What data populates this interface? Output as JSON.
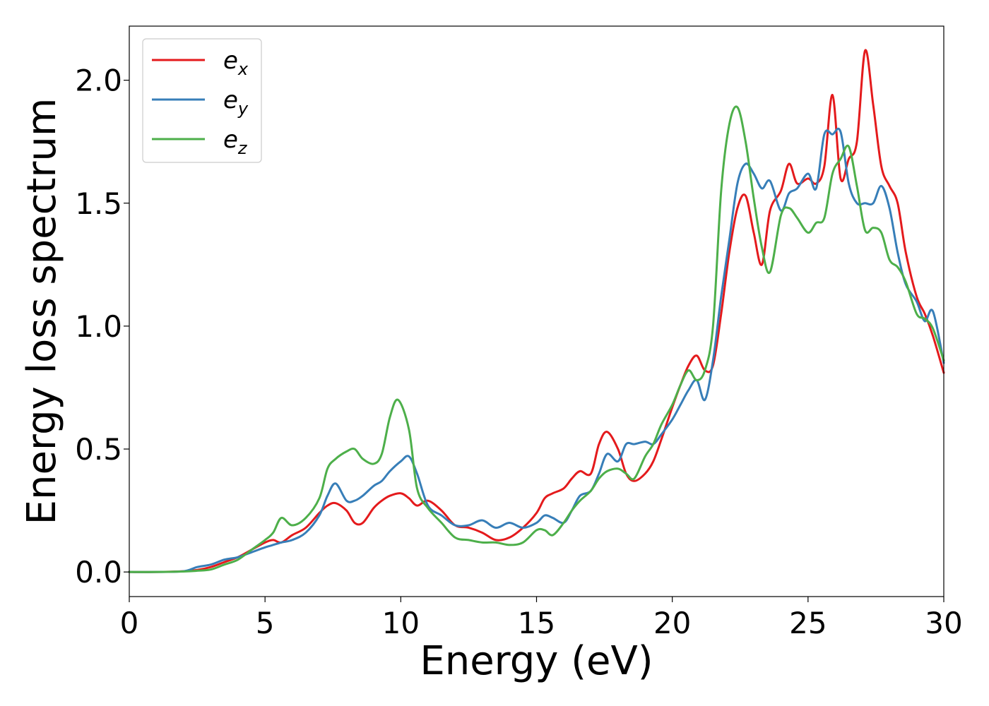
{
  "chart_data": {
    "type": "line",
    "xlabel": "Energy (eV)",
    "ylabel": "Energy loss spectrum",
    "xlim": [
      0,
      30
    ],
    "ylim": [
      -0.1,
      2.22
    ],
    "xticks": [
      0,
      5,
      10,
      15,
      20,
      25,
      30
    ],
    "yticks": [
      0.0,
      0.5,
      1.0,
      1.5,
      2.0
    ],
    "xtick_labels": [
      "0",
      "5",
      "10",
      "15",
      "20",
      "25",
      "30"
    ],
    "ytick_labels": [
      "0.0",
      "0.5",
      "1.0",
      "1.5",
      "2.0"
    ],
    "grid": false,
    "legend_position": "top-left",
    "series": [
      {
        "name": "e_x",
        "name_base": "e",
        "name_sub": "x",
        "color": "#e41a1c",
        "x": [
          0,
          1,
          2,
          2.5,
          3,
          3.5,
          4,
          4.5,
          5,
          5.3,
          5.6,
          6,
          6.5,
          7,
          7.3,
          7.6,
          8,
          8.3,
          8.6,
          9,
          9.3,
          9.6,
          10,
          10.3,
          10.6,
          11,
          11.5,
          12,
          12.5,
          13,
          13.5,
          14,
          14.5,
          15,
          15.3,
          15.6,
          16,
          16.3,
          16.6,
          17,
          17.3,
          17.6,
          18,
          18.3,
          18.6,
          19,
          19.3,
          19.6,
          20,
          20.3,
          20.6,
          20.9,
          21.2,
          21.5,
          21.8,
          22.1,
          22.4,
          22.7,
          23,
          23.3,
          23.6,
          24,
          24.3,
          24.6,
          25,
          25.3,
          25.6,
          25.9,
          26.2,
          26.5,
          26.8,
          27.1,
          27.4,
          27.7,
          28,
          28.3,
          28.6,
          29,
          29.3,
          29.6,
          30
        ],
        "y": [
          0,
          0,
          0.003,
          0.008,
          0.02,
          0.04,
          0.06,
          0.09,
          0.12,
          0.13,
          0.12,
          0.15,
          0.18,
          0.24,
          0.27,
          0.28,
          0.25,
          0.2,
          0.2,
          0.26,
          0.29,
          0.31,
          0.32,
          0.3,
          0.27,
          0.29,
          0.25,
          0.19,
          0.18,
          0.16,
          0.13,
          0.14,
          0.18,
          0.24,
          0.3,
          0.32,
          0.34,
          0.38,
          0.41,
          0.4,
          0.52,
          0.57,
          0.5,
          0.4,
          0.37,
          0.4,
          0.45,
          0.54,
          0.67,
          0.76,
          0.84,
          0.88,
          0.82,
          0.84,
          1.05,
          1.3,
          1.48,
          1.53,
          1.38,
          1.25,
          1.47,
          1.55,
          1.66,
          1.58,
          1.6,
          1.58,
          1.65,
          1.94,
          1.6,
          1.68,
          1.75,
          2.12,
          1.9,
          1.65,
          1.57,
          1.5,
          1.3,
          1.12,
          1.05,
          0.96,
          0.81
        ]
      },
      {
        "name": "e_y",
        "name_base": "e",
        "name_sub": "y",
        "color": "#377eb8",
        "x": [
          0,
          1,
          2,
          2.5,
          3,
          3.5,
          4,
          4.5,
          5,
          5.3,
          5.6,
          6,
          6.5,
          7,
          7.3,
          7.6,
          8,
          8.3,
          8.6,
          9,
          9.3,
          9.6,
          10,
          10.3,
          10.6,
          11,
          11.5,
          12,
          12.5,
          13,
          13.5,
          14,
          14.5,
          15,
          15.3,
          15.6,
          16,
          16.3,
          16.6,
          17,
          17.3,
          17.6,
          18,
          18.3,
          18.6,
          19,
          19.3,
          19.6,
          20,
          20.3,
          20.6,
          20.9,
          21.2,
          21.5,
          21.8,
          22.1,
          22.4,
          22.7,
          23,
          23.3,
          23.6,
          24,
          24.3,
          24.6,
          25,
          25.3,
          25.6,
          25.9,
          26.2,
          26.5,
          26.8,
          27.1,
          27.4,
          27.7,
          28,
          28.3,
          28.6,
          29,
          29.3,
          29.6,
          30
        ],
        "y": [
          0,
          0,
          0.003,
          0.02,
          0.03,
          0.05,
          0.06,
          0.08,
          0.1,
          0.11,
          0.12,
          0.13,
          0.16,
          0.23,
          0.31,
          0.36,
          0.29,
          0.29,
          0.31,
          0.35,
          0.37,
          0.41,
          0.45,
          0.47,
          0.4,
          0.27,
          0.23,
          0.19,
          0.19,
          0.21,
          0.18,
          0.2,
          0.18,
          0.2,
          0.23,
          0.22,
          0.2,
          0.25,
          0.31,
          0.33,
          0.4,
          0.48,
          0.45,
          0.52,
          0.52,
          0.53,
          0.52,
          0.56,
          0.62,
          0.68,
          0.74,
          0.78,
          0.7,
          0.86,
          1.12,
          1.35,
          1.58,
          1.66,
          1.62,
          1.56,
          1.59,
          1.47,
          1.54,
          1.56,
          1.62,
          1.56,
          1.78,
          1.78,
          1.79,
          1.58,
          1.5,
          1.5,
          1.5,
          1.57,
          1.48,
          1.3,
          1.17,
          1.1,
          1.02,
          1.06,
          0.85
        ]
      },
      {
        "name": "e_z",
        "name_base": "e",
        "name_sub": "z",
        "color": "#4daf4a",
        "x": [
          0,
          1,
          2,
          2.5,
          3,
          3.5,
          4,
          4.5,
          5,
          5.3,
          5.6,
          6,
          6.5,
          7,
          7.3,
          7.6,
          8,
          8.3,
          8.6,
          9,
          9.3,
          9.6,
          9.9,
          10.3,
          10.6,
          11,
          11.5,
          12,
          12.5,
          13,
          13.5,
          14,
          14.5,
          15,
          15.3,
          15.6,
          16,
          16.3,
          16.6,
          17,
          17.3,
          17.6,
          18,
          18.3,
          18.6,
          19,
          19.3,
          19.6,
          20,
          20.3,
          20.6,
          20.9,
          21.2,
          21.5,
          21.8,
          22.1,
          22.4,
          22.7,
          23,
          23.3,
          23.6,
          24,
          24.3,
          24.6,
          25,
          25.3,
          25.6,
          25.9,
          26.2,
          26.5,
          26.8,
          27.1,
          27.4,
          27.7,
          28,
          28.3,
          28.6,
          29,
          29.3,
          29.6,
          30
        ],
        "y": [
          0,
          0,
          0.002,
          0.005,
          0.01,
          0.03,
          0.05,
          0.09,
          0.13,
          0.16,
          0.22,
          0.19,
          0.22,
          0.3,
          0.42,
          0.46,
          0.49,
          0.5,
          0.46,
          0.44,
          0.48,
          0.63,
          0.7,
          0.58,
          0.34,
          0.26,
          0.2,
          0.14,
          0.13,
          0.12,
          0.12,
          0.11,
          0.12,
          0.17,
          0.17,
          0.15,
          0.2,
          0.25,
          0.29,
          0.33,
          0.38,
          0.41,
          0.42,
          0.4,
          0.38,
          0.47,
          0.52,
          0.6,
          0.68,
          0.76,
          0.82,
          0.78,
          0.82,
          1.0,
          1.55,
          1.82,
          1.89,
          1.75,
          1.52,
          1.32,
          1.22,
          1.45,
          1.48,
          1.44,
          1.38,
          1.42,
          1.44,
          1.62,
          1.68,
          1.73,
          1.57,
          1.39,
          1.4,
          1.38,
          1.27,
          1.24,
          1.18,
          1.05,
          1.03,
          0.99,
          0.86
        ]
      }
    ]
  }
}
